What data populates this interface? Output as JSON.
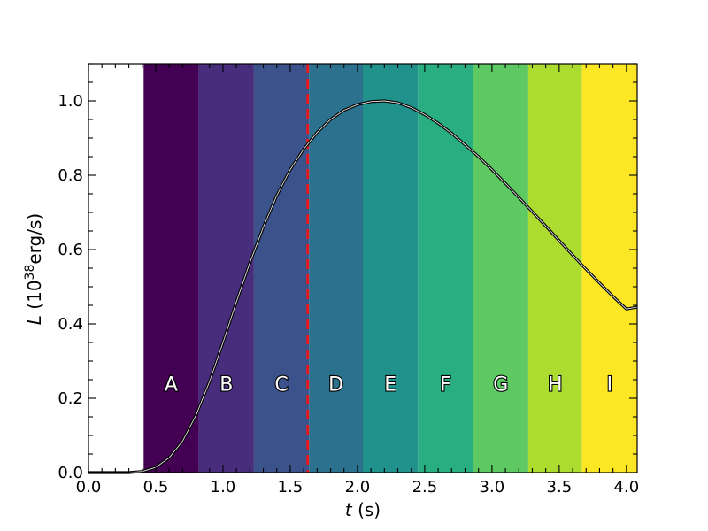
{
  "chart_data": {
    "type": "line",
    "title": "",
    "xlabel": {
      "symbol": "t",
      "unit": " (s)"
    },
    "ylabel": {
      "symbol": "L",
      "unit_open": " (10",
      "unit_exp": "38",
      "unit_close": "erg/s)"
    },
    "xlim": [
      0.0,
      4.08
    ],
    "ylim": [
      0.0,
      1.1
    ],
    "x_ticks": [
      0.0,
      0.5,
      1.0,
      1.5,
      2.0,
      2.5,
      3.0,
      3.5,
      4.0
    ],
    "x_tick_labels": [
      "0.0",
      "0.5",
      "1.0",
      "1.5",
      "2.0",
      "2.5",
      "3.0",
      "3.5",
      "4.0"
    ],
    "y_ticks": [
      0.0,
      0.2,
      0.4,
      0.6,
      0.8,
      1.0
    ],
    "y_tick_labels": [
      "0.0",
      "0.2",
      "0.4",
      "0.6",
      "0.8",
      "1.0"
    ],
    "bands": [
      {
        "label": "A",
        "x0": 0.41,
        "x1": 0.82,
        "color": "#440154"
      },
      {
        "label": "B",
        "x0": 0.82,
        "x1": 1.23,
        "color": "#472d7b"
      },
      {
        "label": "C",
        "x0": 1.23,
        "x1": 1.64,
        "color": "#3b528b"
      },
      {
        "label": "D",
        "x0": 1.64,
        "x1": 2.04,
        "color": "#2c728e"
      },
      {
        "label": "E",
        "x0": 2.04,
        "x1": 2.45,
        "color": "#21918c"
      },
      {
        "label": "F",
        "x0": 2.45,
        "x1": 2.86,
        "color": "#28ae80"
      },
      {
        "label": "G",
        "x0": 2.86,
        "x1": 3.27,
        "color": "#5ec962"
      },
      {
        "label": "H",
        "x0": 3.27,
        "x1": 3.67,
        "color": "#addc30"
      },
      {
        "label": "I",
        "x0": 3.67,
        "x1": 4.08,
        "color": "#fde725"
      }
    ],
    "band_label_y": 0.22,
    "vline": {
      "x": 1.63,
      "color": "#e8191d",
      "style": "dashed"
    },
    "series": [
      {
        "color": "#000000",
        "x": [
          0.0,
          0.3,
          0.4,
          0.5,
          0.6,
          0.7,
          0.8,
          0.9,
          1.0,
          1.1,
          1.2,
          1.3,
          1.4,
          1.5,
          1.6,
          1.7,
          1.8,
          1.9,
          2.0,
          2.1,
          2.2,
          2.3,
          2.4,
          2.5,
          2.6,
          2.7,
          2.8,
          2.9,
          3.0,
          3.1,
          3.2,
          3.3,
          3.4,
          3.5,
          3.6,
          3.7,
          3.8,
          3.9,
          4.0,
          4.08
        ],
        "y": [
          0.0,
          0.0,
          0.003,
          0.014,
          0.04,
          0.085,
          0.155,
          0.245,
          0.35,
          0.46,
          0.565,
          0.66,
          0.745,
          0.815,
          0.87,
          0.915,
          0.95,
          0.975,
          0.99,
          0.998,
          1.0,
          0.995,
          0.982,
          0.963,
          0.94,
          0.913,
          0.882,
          0.85,
          0.815,
          0.778,
          0.74,
          0.702,
          0.663,
          0.624,
          0.585,
          0.547,
          0.51,
          0.474,
          0.44,
          0.445
        ]
      }
    ]
  }
}
